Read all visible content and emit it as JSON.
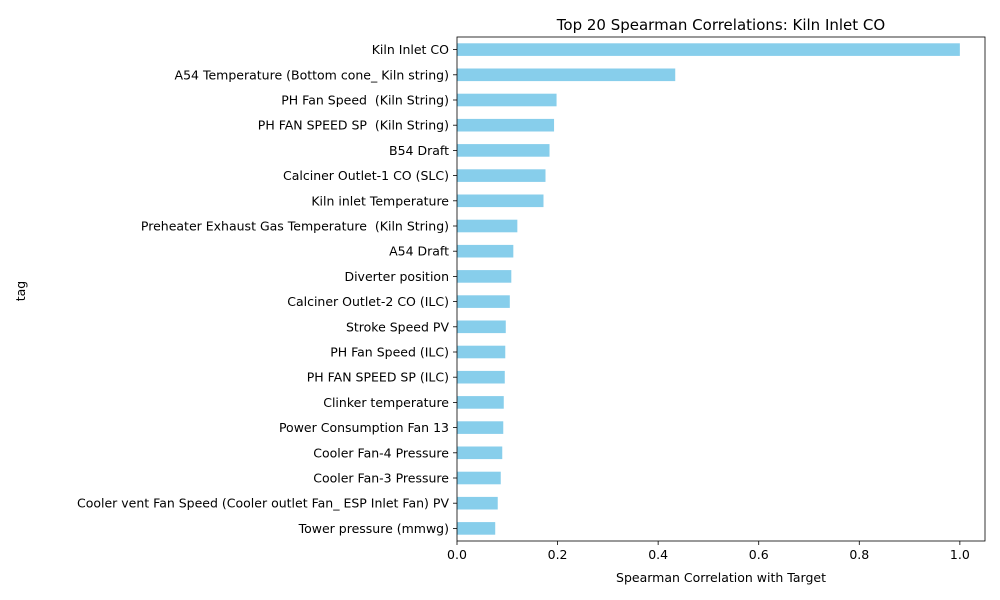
{
  "chart_data": {
    "type": "bar",
    "orientation": "horizontal",
    "title": "Top 20 Spearman Correlations: Kiln Inlet CO",
    "xlabel": "Spearman Correlation with Target",
    "ylabel": "tag",
    "xlim": [
      0,
      1.05
    ],
    "xticks": [
      "0.0",
      "0.2",
      "0.4",
      "0.6",
      "0.8",
      "1.0"
    ],
    "grid": false,
    "bar_color": "#87ceeb",
    "categories": [
      "Kiln Inlet CO",
      "A54 Temperature (Bottom cone_ Kiln string)",
      "PH Fan Speed  (Kiln String)",
      "PH FAN SPEED SP  (Kiln String)",
      "B54 Draft",
      "Calciner Outlet-1 CO (SLC)",
      "Kiln inlet Temperature",
      "Preheater Exhaust Gas Temperature  (Kiln String)",
      "A54 Draft",
      "Diverter position",
      "Calciner Outlet-2 CO (ILC)",
      "Stroke Speed PV",
      "PH Fan Speed (ILC)",
      "PH FAN SPEED SP (ILC)",
      "Clinker temperature",
      "Power Consumption Fan 13",
      "Cooler Fan-4 Pressure",
      "Cooler Fan-3 Pressure",
      "Cooler vent Fan Speed (Cooler outlet Fan_ ESP Inlet Fan) PV",
      "Tower pressure (mmwg)"
    ],
    "values": [
      1.0,
      0.434,
      0.198,
      0.193,
      0.184,
      0.176,
      0.172,
      0.12,
      0.112,
      0.108,
      0.105,
      0.097,
      0.096,
      0.095,
      0.093,
      0.092,
      0.09,
      0.087,
      0.081,
      0.076
    ]
  }
}
